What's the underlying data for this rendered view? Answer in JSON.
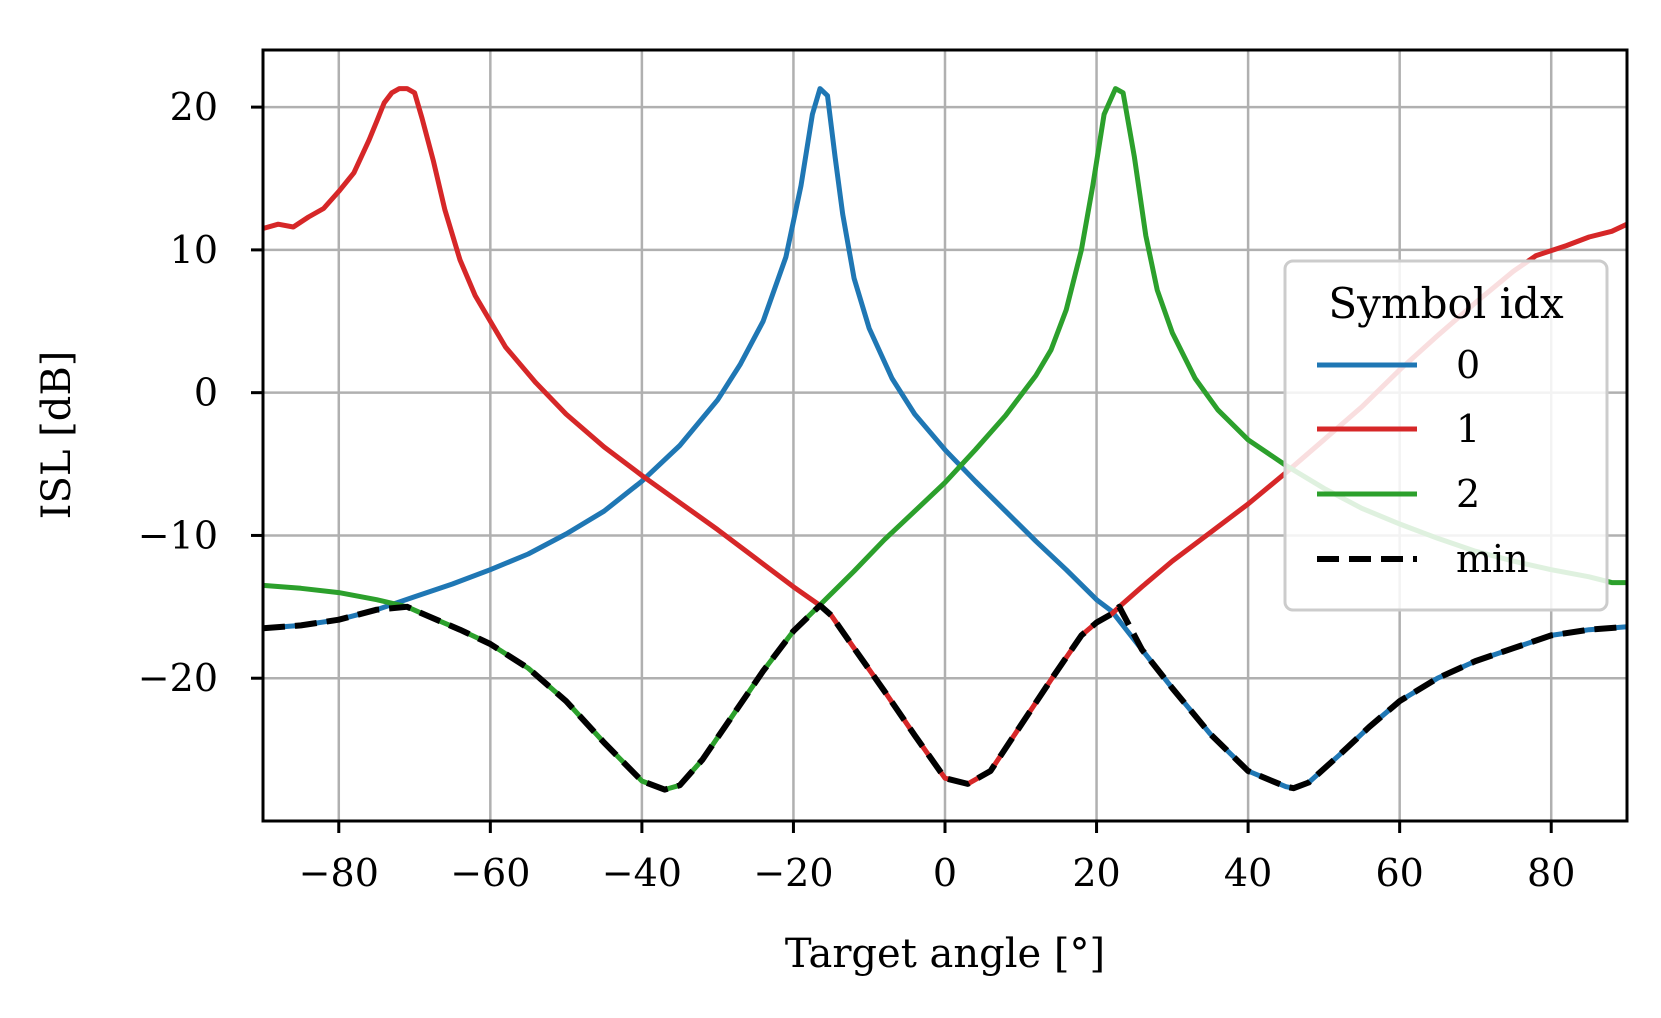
{
  "chart_data": {
    "type": "line",
    "xlabel": "Target angle [°]",
    "ylabel": "ISL [dB]",
    "xlim": [
      -90,
      90
    ],
    "ylim": [
      -30,
      24
    ],
    "xticks": [
      -80,
      -60,
      -40,
      -20,
      0,
      20,
      40,
      60,
      80
    ],
    "xtick_labels": [
      "−80",
      "−60",
      "−40",
      "−20",
      "0",
      "20",
      "40",
      "60",
      "80"
    ],
    "yticks": [
      -20,
      -10,
      0,
      10,
      20
    ],
    "ytick_labels": [
      "−20",
      "−10",
      "0",
      "10",
      "20"
    ],
    "grid": true,
    "legend": {
      "title": "Symbol idx",
      "placement": "center-right",
      "entries": [
        "0",
        "1",
        "2",
        "min"
      ]
    },
    "series": [
      {
        "name": "0",
        "color": "#1f77b4",
        "style": "solid",
        "x": [
          -90,
          -85,
          -80,
          -75,
          -70,
          -65,
          -60,
          -55,
          -50,
          -45,
          -40,
          -35,
          -30,
          -27,
          -24,
          -21,
          -19,
          -17.5,
          -16.5,
          -15.5,
          -14.5,
          -13.5,
          -12,
          -10,
          -7,
          -4,
          0,
          4,
          8,
          12,
          16,
          20,
          22,
          26,
          30,
          35,
          40,
          45,
          46,
          48,
          52,
          56,
          60,
          65,
          70,
          75,
          80,
          85,
          90
        ],
        "y": [
          -16.5,
          -16.3,
          -15.9,
          -15.2,
          -14.3,
          -13.4,
          -12.4,
          -11.3,
          -9.9,
          -8.3,
          -6.2,
          -3.7,
          -0.5,
          2.0,
          5.0,
          9.5,
          14.5,
          19.5,
          21.3,
          20.8,
          16.5,
          12.5,
          8.0,
          4.5,
          1.0,
          -1.5,
          -4.0,
          -6.2,
          -8.3,
          -10.4,
          -12.4,
          -14.5,
          -15.3,
          -18.0,
          -20.7,
          -23.9,
          -26.5,
          -27.6,
          -27.7,
          -27.3,
          -25.4,
          -23.4,
          -21.6,
          -20.0,
          -18.8,
          -17.9,
          -17.0,
          -16.6,
          -16.4
        ]
      },
      {
        "name": "1",
        "color": "#d62728",
        "style": "solid",
        "x": [
          -90,
          -88,
          -86,
          -84,
          -82,
          -80,
          -78,
          -76,
          -75,
          -74,
          -73,
          -72,
          -71,
          -70,
          -69,
          -67.5,
          -66,
          -64,
          -62,
          -58,
          -54,
          -50,
          -45,
          -40,
          -35,
          -30,
          -25,
          -20,
          -16.5,
          -15,
          -12,
          -8,
          -4,
          0,
          3,
          6,
          10,
          14,
          18,
          20,
          22,
          23,
          26,
          30,
          35,
          40,
          45,
          50,
          55,
          60,
          65,
          70,
          75,
          78,
          82,
          85,
          88,
          90
        ],
        "y": [
          11.5,
          11.8,
          11.6,
          12.3,
          12.9,
          14.1,
          15.4,
          17.7,
          19.0,
          20.3,
          21.0,
          21.3,
          21.3,
          21.0,
          19.2,
          16.2,
          12.8,
          9.3,
          6.8,
          3.2,
          0.7,
          -1.5,
          -3.8,
          -5.8,
          -7.7,
          -9.6,
          -11.6,
          -13.6,
          -14.9,
          -15.6,
          -17.9,
          -20.9,
          -24.0,
          -27.0,
          -27.4,
          -26.5,
          -23.3,
          -20.1,
          -17.0,
          -16.1,
          -15.5,
          -15.0,
          -13.6,
          -11.8,
          -9.8,
          -7.8,
          -5.6,
          -3.3,
          -1.0,
          1.6,
          4.0,
          6.3,
          8.5,
          9.6,
          10.3,
          10.9,
          11.3,
          11.8
        ]
      },
      {
        "name": "2",
        "color": "#2ca02c",
        "style": "solid",
        "x": [
          -90,
          -85,
          -80,
          -75,
          -71,
          -68,
          -64,
          -60,
          -55,
          -50,
          -45,
          -40,
          -37,
          -35,
          -32,
          -28,
          -24,
          -20,
          -16,
          -12,
          -8,
          -4,
          0,
          4,
          8,
          12,
          14,
          16,
          18,
          19.5,
          21,
          22.5,
          23.5,
          25,
          26.5,
          28,
          30,
          33,
          36,
          40,
          45,
          50,
          55,
          60,
          65,
          70,
          75,
          80,
          85,
          88,
          90
        ],
        "y": [
          -13.5,
          -13.7,
          -14.0,
          -14.5,
          -15.0,
          -15.7,
          -16.6,
          -17.6,
          -19.3,
          -21.6,
          -24.5,
          -27.2,
          -27.8,
          -27.5,
          -25.7,
          -22.6,
          -19.5,
          -16.7,
          -14.6,
          -12.5,
          -10.3,
          -8.3,
          -6.3,
          -4.0,
          -1.6,
          1.2,
          3.0,
          5.8,
          10.0,
          14.5,
          19.5,
          21.3,
          21.0,
          16.5,
          11.0,
          7.2,
          4.2,
          1.0,
          -1.2,
          -3.3,
          -5.1,
          -6.7,
          -8.1,
          -9.2,
          -10.2,
          -11.1,
          -11.8,
          -12.4,
          -12.9,
          -13.3,
          -13.3
        ]
      },
      {
        "name": "min",
        "color": "#000000",
        "style": "dashed",
        "x": [
          -90,
          -85,
          -80,
          -75,
          -71,
          -68,
          -64,
          -60,
          -55,
          -50,
          -45,
          -40,
          -37,
          -35,
          -32,
          -28,
          -24,
          -20,
          -16.5,
          -15,
          -12,
          -8,
          -4,
          0,
          3,
          6,
          10,
          14,
          18,
          20,
          22,
          23,
          26,
          30,
          35,
          40,
          45,
          46,
          48,
          52,
          56,
          60,
          65,
          70,
          75,
          80,
          85,
          90
        ],
        "y": [
          -16.5,
          -16.3,
          -15.9,
          -15.2,
          -15.0,
          -15.7,
          -16.6,
          -17.6,
          -19.3,
          -21.6,
          -24.5,
          -27.2,
          -27.8,
          -27.5,
          -25.7,
          -22.6,
          -19.5,
          -16.7,
          -14.9,
          -15.6,
          -17.9,
          -20.9,
          -24.0,
          -27.0,
          -27.4,
          -26.5,
          -23.3,
          -20.1,
          -17.0,
          -16.1,
          -15.5,
          -15.0,
          -18.0,
          -20.7,
          -23.9,
          -26.5,
          -27.6,
          -27.7,
          -27.3,
          -25.4,
          -23.4,
          -21.6,
          -20.0,
          -18.8,
          -17.9,
          -17.0,
          -16.6,
          -16.4
        ]
      }
    ]
  }
}
